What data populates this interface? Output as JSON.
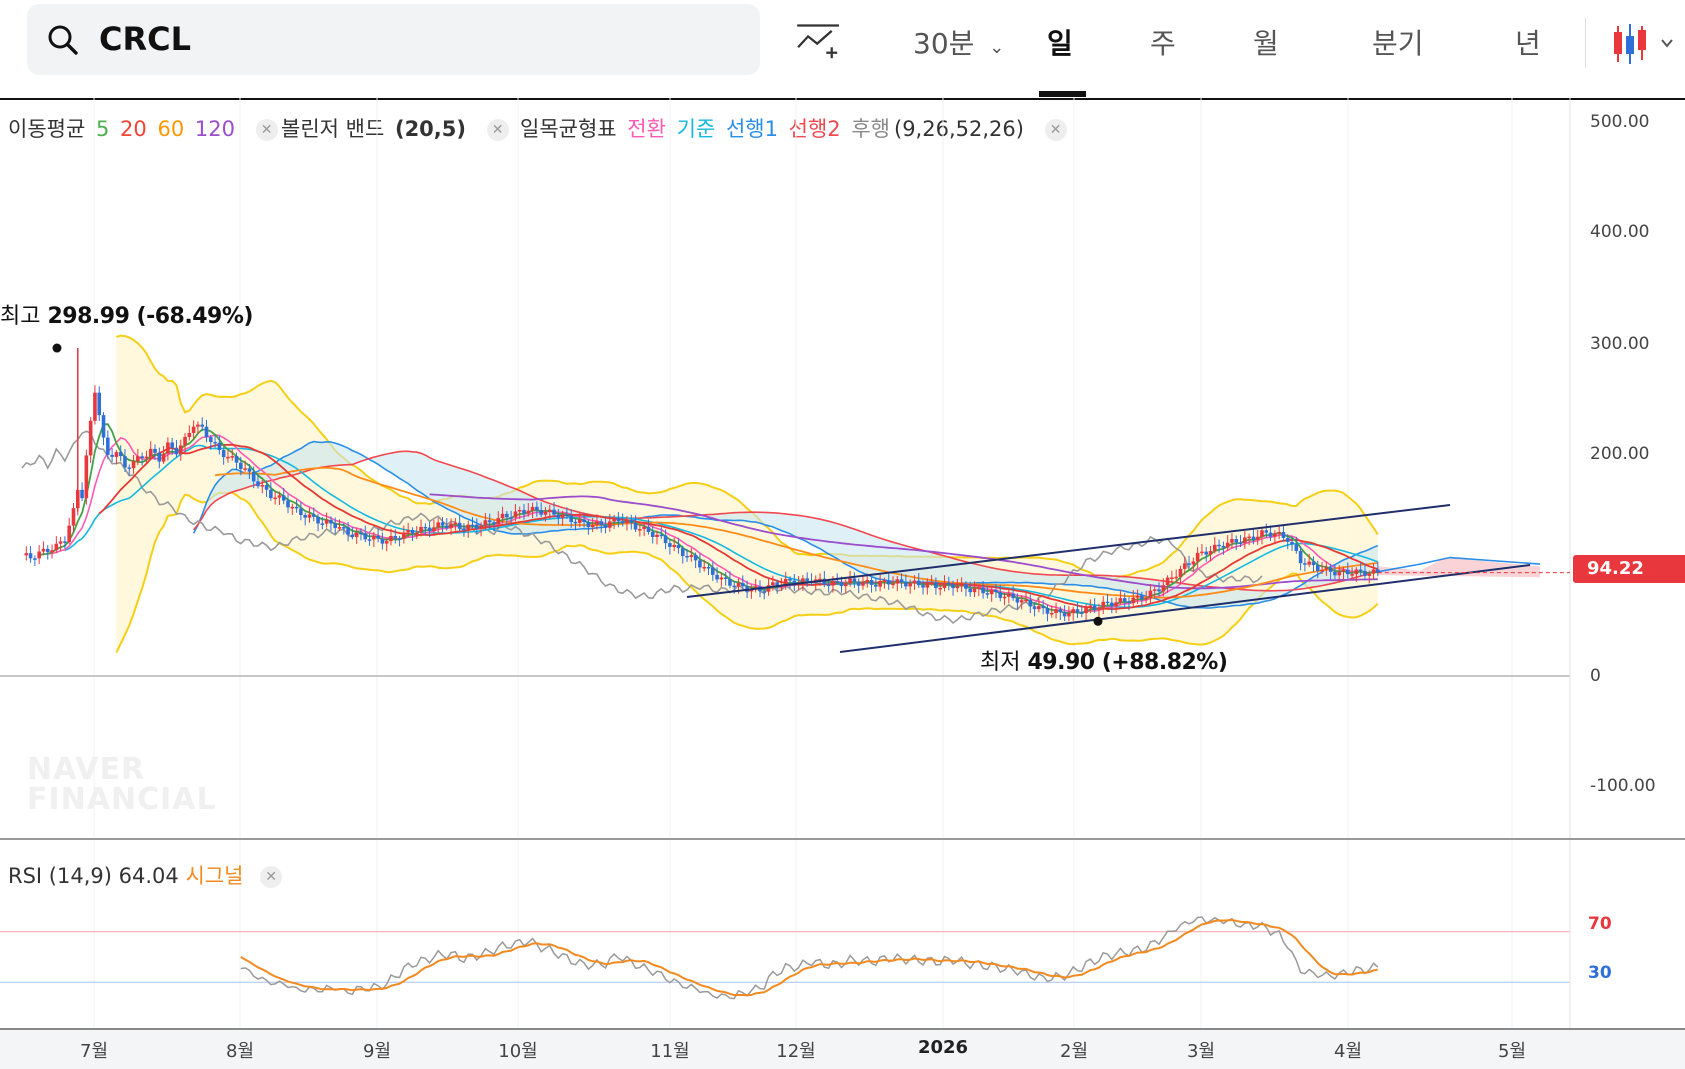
{
  "search": {
    "symbol": "CRCL"
  },
  "toolbar": {
    "interval": "30분",
    "periods": [
      "일",
      "주",
      "월",
      "분기",
      "년"
    ],
    "active_period": "일"
  },
  "legend": {
    "ma_label": "이동평균",
    "ma_periods": [
      "5",
      "20",
      "60",
      "120"
    ],
    "ma_colors": [
      "#4caf50",
      "#f44336",
      "#ff9800",
      "#9c4dcc"
    ],
    "bb_label": "볼린저 밴드",
    "bb_params": "(20,5)",
    "ichimoku_label": "일목균형표",
    "ichimoku_lines": [
      "전환",
      "기준",
      "선행1",
      "선행2",
      "후행"
    ],
    "ichimoku_colors": [
      "#ff5ab4",
      "#17b8e0",
      "#2a8ee8",
      "#f0484e",
      "#8a8a8a"
    ],
    "ichimoku_params": "(9,26,52,26)"
  },
  "annotations": {
    "high_label": "최고",
    "high_value": "298.99 (-68.49%)",
    "low_label": "최저",
    "low_value": "49.90 (+88.82%)"
  },
  "current_price": "94.22",
  "watermark": [
    "NAVER",
    "FINANCIAL"
  ],
  "rsi": {
    "label": "RSI (14,9)",
    "value": "64.04",
    "signal_label": "시그널",
    "levels": [
      "70",
      "30"
    ]
  },
  "chart_data": {
    "type": "candlestick",
    "y_ticks": [
      "500.00",
      "400.00",
      "300.00",
      "200.00",
      "0",
      "-100.00"
    ],
    "ylim": [
      -150,
      500
    ],
    "x_ticks": [
      "7월",
      "8월",
      "9월",
      "10월",
      "11월",
      "12월",
      "2026",
      "2월",
      "3월",
      "4월",
      "5월"
    ],
    "close_series": [
      [
        0,
        110
      ],
      [
        2,
        108
      ],
      [
        4,
        112
      ],
      [
        6,
        115
      ],
      [
        8,
        118
      ],
      [
        10,
        125
      ],
      [
        12,
        150
      ],
      [
        13,
        170
      ],
      [
        14,
        165
      ],
      [
        15,
        200
      ],
      [
        16,
        230
      ],
      [
        17,
        260
      ],
      [
        18,
        240
      ],
      [
        19,
        215
      ],
      [
        20,
        200
      ],
      [
        22,
        205
      ],
      [
        24,
        190
      ],
      [
        26,
        195
      ],
      [
        28,
        200
      ],
      [
        30,
        205
      ],
      [
        32,
        198
      ],
      [
        34,
        210
      ],
      [
        36,
        205
      ],
      [
        38,
        215
      ],
      [
        40,
        230
      ],
      [
        42,
        225
      ],
      [
        44,
        215
      ],
      [
        46,
        205
      ],
      [
        48,
        200
      ],
      [
        50,
        195
      ],
      [
        52,
        188
      ],
      [
        55,
        175
      ],
      [
        58,
        165
      ],
      [
        61,
        160
      ],
      [
        64,
        150
      ],
      [
        67,
        145
      ],
      [
        70,
        140
      ],
      [
        73,
        138
      ],
      [
        76,
        130
      ],
      [
        79,
        128
      ],
      [
        82,
        125
      ],
      [
        85,
        123
      ],
      [
        88,
        128
      ],
      [
        91,
        132
      ],
      [
        94,
        134
      ],
      [
        97,
        137
      ],
      [
        100,
        138
      ],
      [
        103,
        135
      ],
      [
        106,
        137
      ],
      [
        109,
        140
      ],
      [
        112,
        145
      ],
      [
        115,
        148
      ],
      [
        118,
        152
      ],
      [
        121,
        150
      ],
      [
        124,
        148
      ],
      [
        127,
        144
      ],
      [
        130,
        140
      ],
      [
        133,
        138
      ],
      [
        136,
        138
      ],
      [
        139,
        143
      ],
      [
        142,
        138
      ],
      [
        145,
        133
      ],
      [
        148,
        128
      ],
      [
        151,
        120
      ],
      [
        154,
        112
      ],
      [
        157,
        105
      ],
      [
        160,
        96
      ],
      [
        163,
        88
      ],
      [
        166,
        83
      ],
      [
        169,
        80
      ],
      [
        172,
        78
      ],
      [
        175,
        83
      ],
      [
        178,
        86
      ],
      [
        181,
        85
      ],
      [
        184,
        88
      ],
      [
        187,
        85
      ],
      [
        190,
        84
      ],
      [
        193,
        86
      ],
      [
        196,
        85
      ],
      [
        199,
        84
      ],
      [
        202,
        86
      ],
      [
        205,
        85
      ],
      [
        208,
        84
      ],
      [
        211,
        83
      ],
      [
        214,
        82
      ],
      [
        217,
        83
      ],
      [
        220,
        80
      ],
      [
        223,
        78
      ],
      [
        226,
        76
      ],
      [
        229,
        73
      ],
      [
        232,
        70
      ],
      [
        235,
        65
      ],
      [
        238,
        60
      ],
      [
        241,
        58
      ],
      [
        244,
        57
      ],
      [
        247,
        60
      ],
      [
        250,
        63
      ],
      [
        253,
        66
      ],
      [
        256,
        68
      ],
      [
        259,
        70
      ],
      [
        262,
        73
      ],
      [
        265,
        80
      ],
      [
        268,
        90
      ],
      [
        271,
        100
      ],
      [
        274,
        110
      ],
      [
        277,
        115
      ],
      [
        280,
        120
      ],
      [
        283,
        123
      ],
      [
        286,
        125
      ],
      [
        289,
        130
      ],
      [
        292,
        130
      ],
      [
        295,
        125
      ],
      [
        298,
        105
      ],
      [
        301,
        100
      ],
      [
        304,
        96
      ],
      [
        307,
        94
      ],
      [
        310,
        95
      ],
      [
        313,
        94
      ],
      [
        316,
        94.22
      ]
    ],
    "high": {
      "value": 298.99,
      "change": "-68.49%"
    },
    "low": {
      "value": 49.9,
      "change": "+88.82%"
    },
    "last": 94.22
  }
}
